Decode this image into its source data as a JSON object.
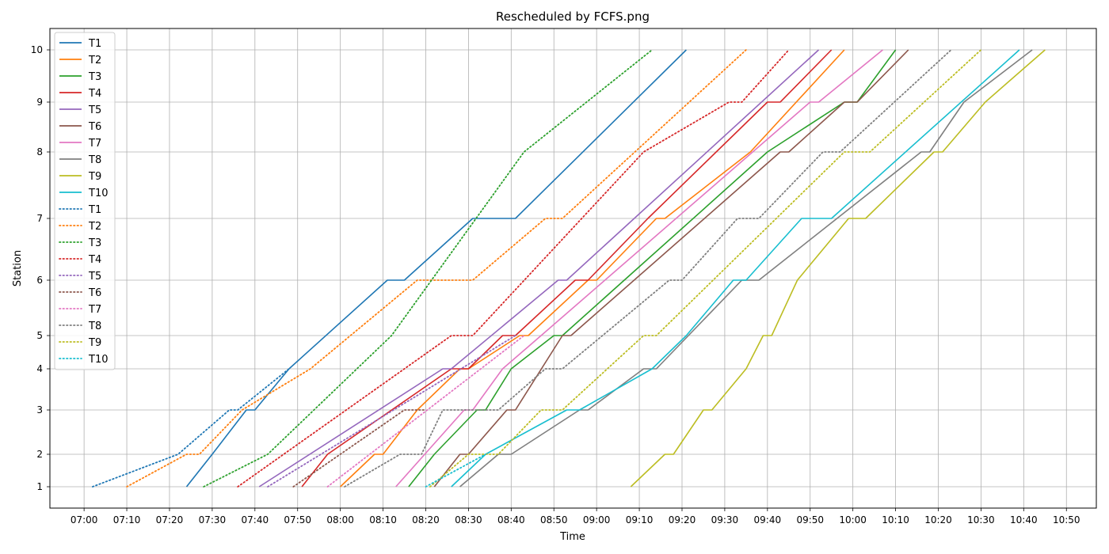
{
  "chart_data": {
    "type": "line",
    "title": "Rescheduled by FCFS.png",
    "xlabel": "Time",
    "ylabel": "Station",
    "x_unit": "minutes since 07:00",
    "xlim": [
      "06:52",
      "10:57"
    ],
    "ylim_stations": [
      0.7,
      10.25
    ],
    "x_tick_labels": [
      "07:00",
      "07:10",
      "07:20",
      "07:30",
      "07:40",
      "07:50",
      "08:00",
      "08:10",
      "08:20",
      "08:30",
      "08:40",
      "08:50",
      "09:00",
      "09:10",
      "09:20",
      "09:30",
      "09:40",
      "09:50",
      "10:00",
      "10:10",
      "10:20",
      "10:30",
      "10:40",
      "10:50"
    ],
    "y_tick_labels": [
      "1",
      "2",
      "3",
      "4",
      "5",
      "6",
      "7",
      "8",
      "9",
      "10"
    ],
    "grid": true,
    "legend_position": "upper-left",
    "series": [
      {
        "name": "T1",
        "style": "solid",
        "color": "#1f77b4",
        "points": [
          [
            "07:24",
            1
          ],
          [
            "07:30",
            2
          ],
          [
            "07:38",
            3
          ],
          [
            "07:40",
            3
          ],
          [
            "07:48",
            4
          ],
          [
            "08:11",
            6
          ],
          [
            "08:15",
            6
          ],
          [
            "08:31",
            7
          ],
          [
            "08:41",
            7
          ],
          [
            "09:21",
            10
          ]
        ]
      },
      {
        "name": "T2",
        "style": "solid",
        "color": "#ff7f0e",
        "points": [
          [
            "08:00",
            1
          ],
          [
            "08:08",
            2
          ],
          [
            "08:10",
            2
          ],
          [
            "08:18",
            3
          ],
          [
            "08:28",
            4
          ],
          [
            "08:30",
            4
          ],
          [
            "08:42",
            5
          ],
          [
            "08:44",
            5
          ],
          [
            "08:58",
            6
          ],
          [
            "09:00",
            6
          ],
          [
            "09:14",
            7
          ],
          [
            "09:16",
            7
          ],
          [
            "09:36",
            8
          ],
          [
            "09:58",
            10
          ]
        ]
      },
      {
        "name": "T3",
        "style": "solid",
        "color": "#2ca02c",
        "points": [
          [
            "08:16",
            1
          ],
          [
            "08:22",
            2
          ],
          [
            "08:32",
            3
          ],
          [
            "08:34",
            3
          ],
          [
            "08:40",
            4
          ],
          [
            "08:50",
            5
          ],
          [
            "08:52",
            5
          ],
          [
            "09:40",
            8
          ],
          [
            "09:58",
            9
          ],
          [
            "10:01",
            9
          ],
          [
            "10:10",
            10
          ]
        ]
      },
      {
        "name": "T4",
        "style": "solid",
        "color": "#d62728",
        "points": [
          [
            "07:51",
            1
          ],
          [
            "07:57",
            2
          ],
          [
            "08:26",
            4
          ],
          [
            "08:30",
            4
          ],
          [
            "08:38",
            5
          ],
          [
            "08:41",
            5
          ],
          [
            "08:55",
            6
          ],
          [
            "08:58",
            6
          ],
          [
            "09:12",
            7
          ],
          [
            "09:40",
            9
          ],
          [
            "09:43",
            9
          ],
          [
            "09:55",
            10
          ]
        ]
      },
      {
        "name": "T5",
        "style": "solid",
        "color": "#9467bd",
        "points": [
          [
            "07:41",
            1
          ],
          [
            "08:24",
            4
          ],
          [
            "08:26",
            4
          ],
          [
            "08:51",
            6
          ],
          [
            "08:53",
            6
          ],
          [
            "09:52",
            10
          ]
        ]
      },
      {
        "name": "T6",
        "style": "solid",
        "color": "#8c564b",
        "points": [
          [
            "08:22",
            1
          ],
          [
            "08:28",
            2
          ],
          [
            "08:30",
            2
          ],
          [
            "08:39",
            3
          ],
          [
            "08:41",
            3
          ],
          [
            "08:52",
            5
          ],
          [
            "08:54",
            5
          ],
          [
            "09:43",
            8
          ],
          [
            "09:45",
            8
          ],
          [
            "09:58",
            9
          ],
          [
            "10:01",
            9
          ],
          [
            "10:13",
            10
          ]
        ]
      },
      {
        "name": "T7",
        "style": "solid",
        "color": "#e377c2",
        "points": [
          [
            "08:13",
            1
          ],
          [
            "08:29",
            3
          ],
          [
            "08:31",
            3
          ],
          [
            "08:38",
            4
          ],
          [
            "08:47",
            5
          ],
          [
            "09:50",
            9
          ],
          [
            "09:52",
            9
          ],
          [
            "10:07",
            10
          ]
        ]
      },
      {
        "name": "T8",
        "style": "solid",
        "color": "#7f7f7f",
        "points": [
          [
            "08:28",
            1
          ],
          [
            "08:37",
            2
          ],
          [
            "08:40",
            2
          ],
          [
            "08:56",
            3
          ],
          [
            "08:58",
            3
          ],
          [
            "09:11",
            4
          ],
          [
            "09:14",
            4
          ],
          [
            "09:34",
            6
          ],
          [
            "09:38",
            6
          ],
          [
            "10:16",
            8
          ],
          [
            "10:18",
            8
          ],
          [
            "10:26",
            9
          ],
          [
            "10:42",
            10
          ]
        ]
      },
      {
        "name": "T9",
        "style": "solid",
        "color": "#bcbd22",
        "points": [
          [
            "09:08",
            1
          ],
          [
            "09:16",
            2
          ],
          [
            "09:18",
            2
          ],
          [
            "09:25",
            3
          ],
          [
            "09:27",
            3
          ],
          [
            "09:35",
            4
          ],
          [
            "09:39",
            5
          ],
          [
            "09:41",
            5
          ],
          [
            "09:47",
            6
          ],
          [
            "09:59",
            7
          ],
          [
            "10:03",
            7
          ],
          [
            "10:19",
            8
          ],
          [
            "10:21",
            8
          ],
          [
            "10:31",
            9
          ],
          [
            "10:45",
            10
          ]
        ]
      },
      {
        "name": "T10",
        "style": "solid",
        "color": "#17becf",
        "points": [
          [
            "08:26",
            1
          ],
          [
            "08:34",
            2
          ],
          [
            "08:53",
            3
          ],
          [
            "08:56",
            3
          ],
          [
            "09:13",
            4
          ],
          [
            "09:21",
            5
          ],
          [
            "09:32",
            6
          ],
          [
            "09:35",
            6
          ],
          [
            "09:48",
            7
          ],
          [
            "09:55",
            7
          ],
          [
            "10:39",
            10
          ]
        ]
      },
      {
        "name": "T1",
        "style": "dotted",
        "color": "#1f77b4",
        "points": [
          [
            "07:02",
            1
          ],
          [
            "07:22",
            2
          ],
          [
            "07:34",
            3
          ],
          [
            "07:36",
            3
          ],
          [
            "07:48",
            4
          ]
        ]
      },
      {
        "name": "T2",
        "style": "dotted",
        "color": "#ff7f0e",
        "points": [
          [
            "07:10",
            1
          ],
          [
            "07:24",
            2
          ],
          [
            "07:27",
            2
          ],
          [
            "07:37",
            3
          ],
          [
            "07:53",
            4
          ],
          [
            "08:18",
            6
          ],
          [
            "08:31",
            6
          ],
          [
            "08:48",
            7
          ],
          [
            "08:52",
            7
          ],
          [
            "09:35",
            10
          ]
        ]
      },
      {
        "name": "T3",
        "style": "dotted",
        "color": "#2ca02c",
        "points": [
          [
            "07:28",
            1
          ],
          [
            "07:43",
            2
          ],
          [
            "08:12",
            5
          ],
          [
            "08:43",
            8
          ],
          [
            "09:13",
            10
          ]
        ]
      },
      {
        "name": "T4",
        "style": "dotted",
        "color": "#d62728",
        "points": [
          [
            "07:36",
            1
          ],
          [
            "08:26",
            5
          ],
          [
            "08:31",
            5
          ],
          [
            "09:11",
            8
          ],
          [
            "09:31",
            9
          ],
          [
            "09:34",
            9
          ],
          [
            "09:45",
            10
          ]
        ]
      },
      {
        "name": "T5",
        "style": "dotted",
        "color": "#9467bd",
        "points": [
          [
            "07:43",
            1
          ],
          [
            "08:41",
            5
          ]
        ]
      },
      {
        "name": "T6",
        "style": "dotted",
        "color": "#8c564b",
        "points": [
          [
            "07:49",
            1
          ],
          [
            "08:15",
            3
          ],
          [
            "08:20",
            3
          ]
        ]
      },
      {
        "name": "T7",
        "style": "dotted",
        "color": "#e377c2",
        "points": [
          [
            "07:57",
            1
          ],
          [
            "08:43",
            5
          ]
        ]
      },
      {
        "name": "T8",
        "style": "dotted",
        "color": "#7f7f7f",
        "points": [
          [
            "08:01",
            1
          ],
          [
            "08:14",
            2
          ],
          [
            "08:19",
            2
          ],
          [
            "08:24",
            3
          ],
          [
            "08:37",
            3
          ],
          [
            "08:48",
            4
          ],
          [
            "08:52",
            4
          ],
          [
            "09:17",
            6
          ],
          [
            "09:20",
            6
          ],
          [
            "09:33",
            7
          ],
          [
            "09:38",
            7
          ],
          [
            "09:53",
            8
          ],
          [
            "09:57",
            8
          ],
          [
            "10:23",
            10
          ]
        ]
      },
      {
        "name": "T9",
        "style": "dotted",
        "color": "#bcbd22",
        "points": [
          [
            "08:21",
            1
          ],
          [
            "08:30",
            2
          ],
          [
            "08:37",
            2
          ],
          [
            "08:47",
            3
          ],
          [
            "08:52",
            3
          ],
          [
            "09:11",
            5
          ],
          [
            "09:14",
            5
          ],
          [
            "09:58",
            8
          ],
          [
            "10:04",
            8
          ],
          [
            "10:30",
            10
          ]
        ]
      },
      {
        "name": "T10",
        "style": "dotted",
        "color": "#17becf",
        "points": [
          [
            "08:20",
            1
          ],
          [
            "08:34",
            2
          ]
        ]
      }
    ]
  }
}
